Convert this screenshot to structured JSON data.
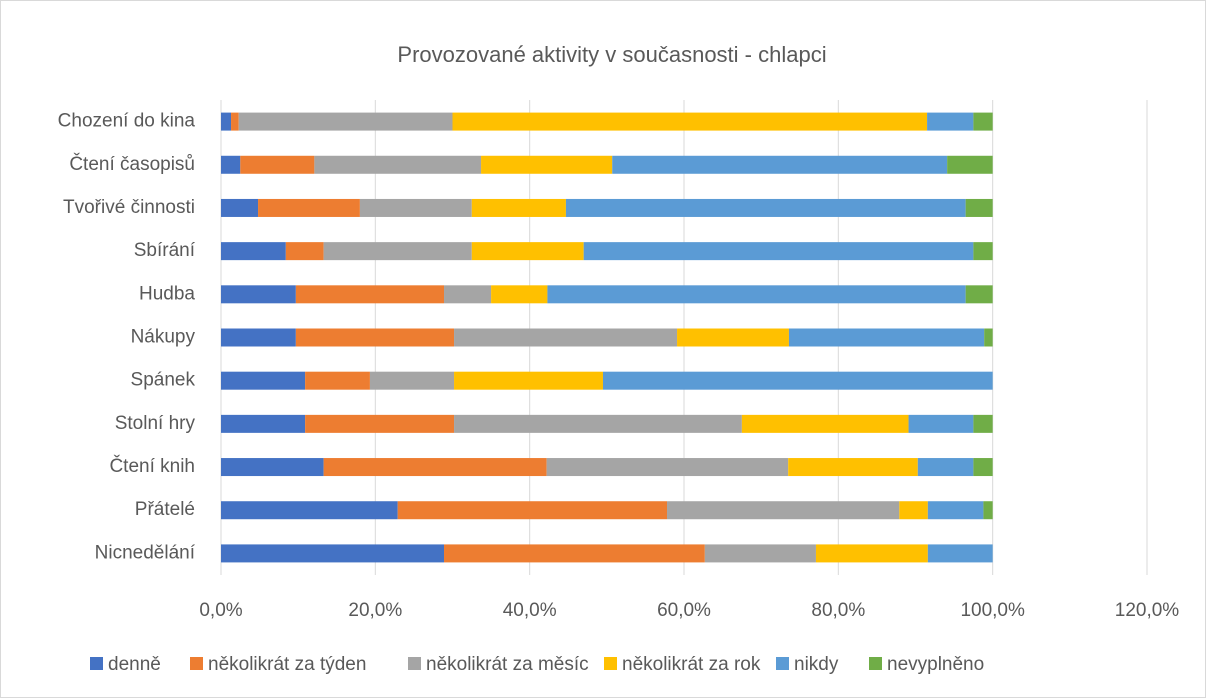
{
  "chart_data": {
    "type": "stacked-barh",
    "title": "Provozované aktivity v současnosti - chlapci",
    "categories": [
      "Chození do kina",
      "Čtení časopisů",
      "Tvořivé činnosti",
      "Sbírání",
      "Hudba",
      "Nákupy",
      "Spánek",
      "Stolní hry",
      "Čtení knih",
      "Přátelé",
      "Nicnedělání"
    ],
    "series": [
      {
        "name": "denně",
        "color": "#4472c4",
        "values": [
          1.3,
          2.5,
          4.8,
          8.4,
          9.7,
          9.7,
          10.9,
          10.9,
          13.3,
          22.9,
          28.9
        ]
      },
      {
        "name": "několikrát za týden",
        "color": "#ed7d31",
        "values": [
          1.0,
          9.6,
          13.2,
          4.9,
          19.2,
          20.5,
          8.4,
          19.3,
          28.9,
          34.9,
          33.8
        ]
      },
      {
        "name": "několikrát za měsíc",
        "color": "#a5a5a5",
        "values": [
          27.7,
          21.6,
          14.5,
          19.2,
          6.1,
          28.9,
          10.9,
          37.3,
          31.3,
          30.1,
          14.4
        ]
      },
      {
        "name": "několikrát za rok",
        "color": "#ffc000",
        "values": [
          61.5,
          17.0,
          12.2,
          14.5,
          7.3,
          14.5,
          19.3,
          21.6,
          16.8,
          3.7,
          14.5
        ]
      },
      {
        "name": "nikdy",
        "color": "#5b9bd5",
        "values": [
          6.0,
          43.4,
          51.8,
          50.5,
          54.2,
          25.3,
          50.5,
          8.4,
          7.2,
          7.2,
          8.4
        ]
      },
      {
        "name": "nevyplněno",
        "color": "#70ad47",
        "values": [
          2.5,
          5.9,
          3.5,
          2.5,
          3.5,
          1.1,
          0,
          2.5,
          2.5,
          1.2,
          0
        ]
      }
    ],
    "xlim": [
      0,
      120
    ],
    "xticks": [
      {
        "value": 0,
        "label": "0,0%"
      },
      {
        "value": 20,
        "label": "20,0%"
      },
      {
        "value": 40,
        "label": "40,0%"
      },
      {
        "value": 60,
        "label": "60,0%"
      },
      {
        "value": 80,
        "label": "80,0%"
      },
      {
        "value": 100,
        "label": "100,0%"
      },
      {
        "value": 120,
        "label": "120,0%"
      }
    ],
    "grid": true,
    "legend": "bottom"
  }
}
